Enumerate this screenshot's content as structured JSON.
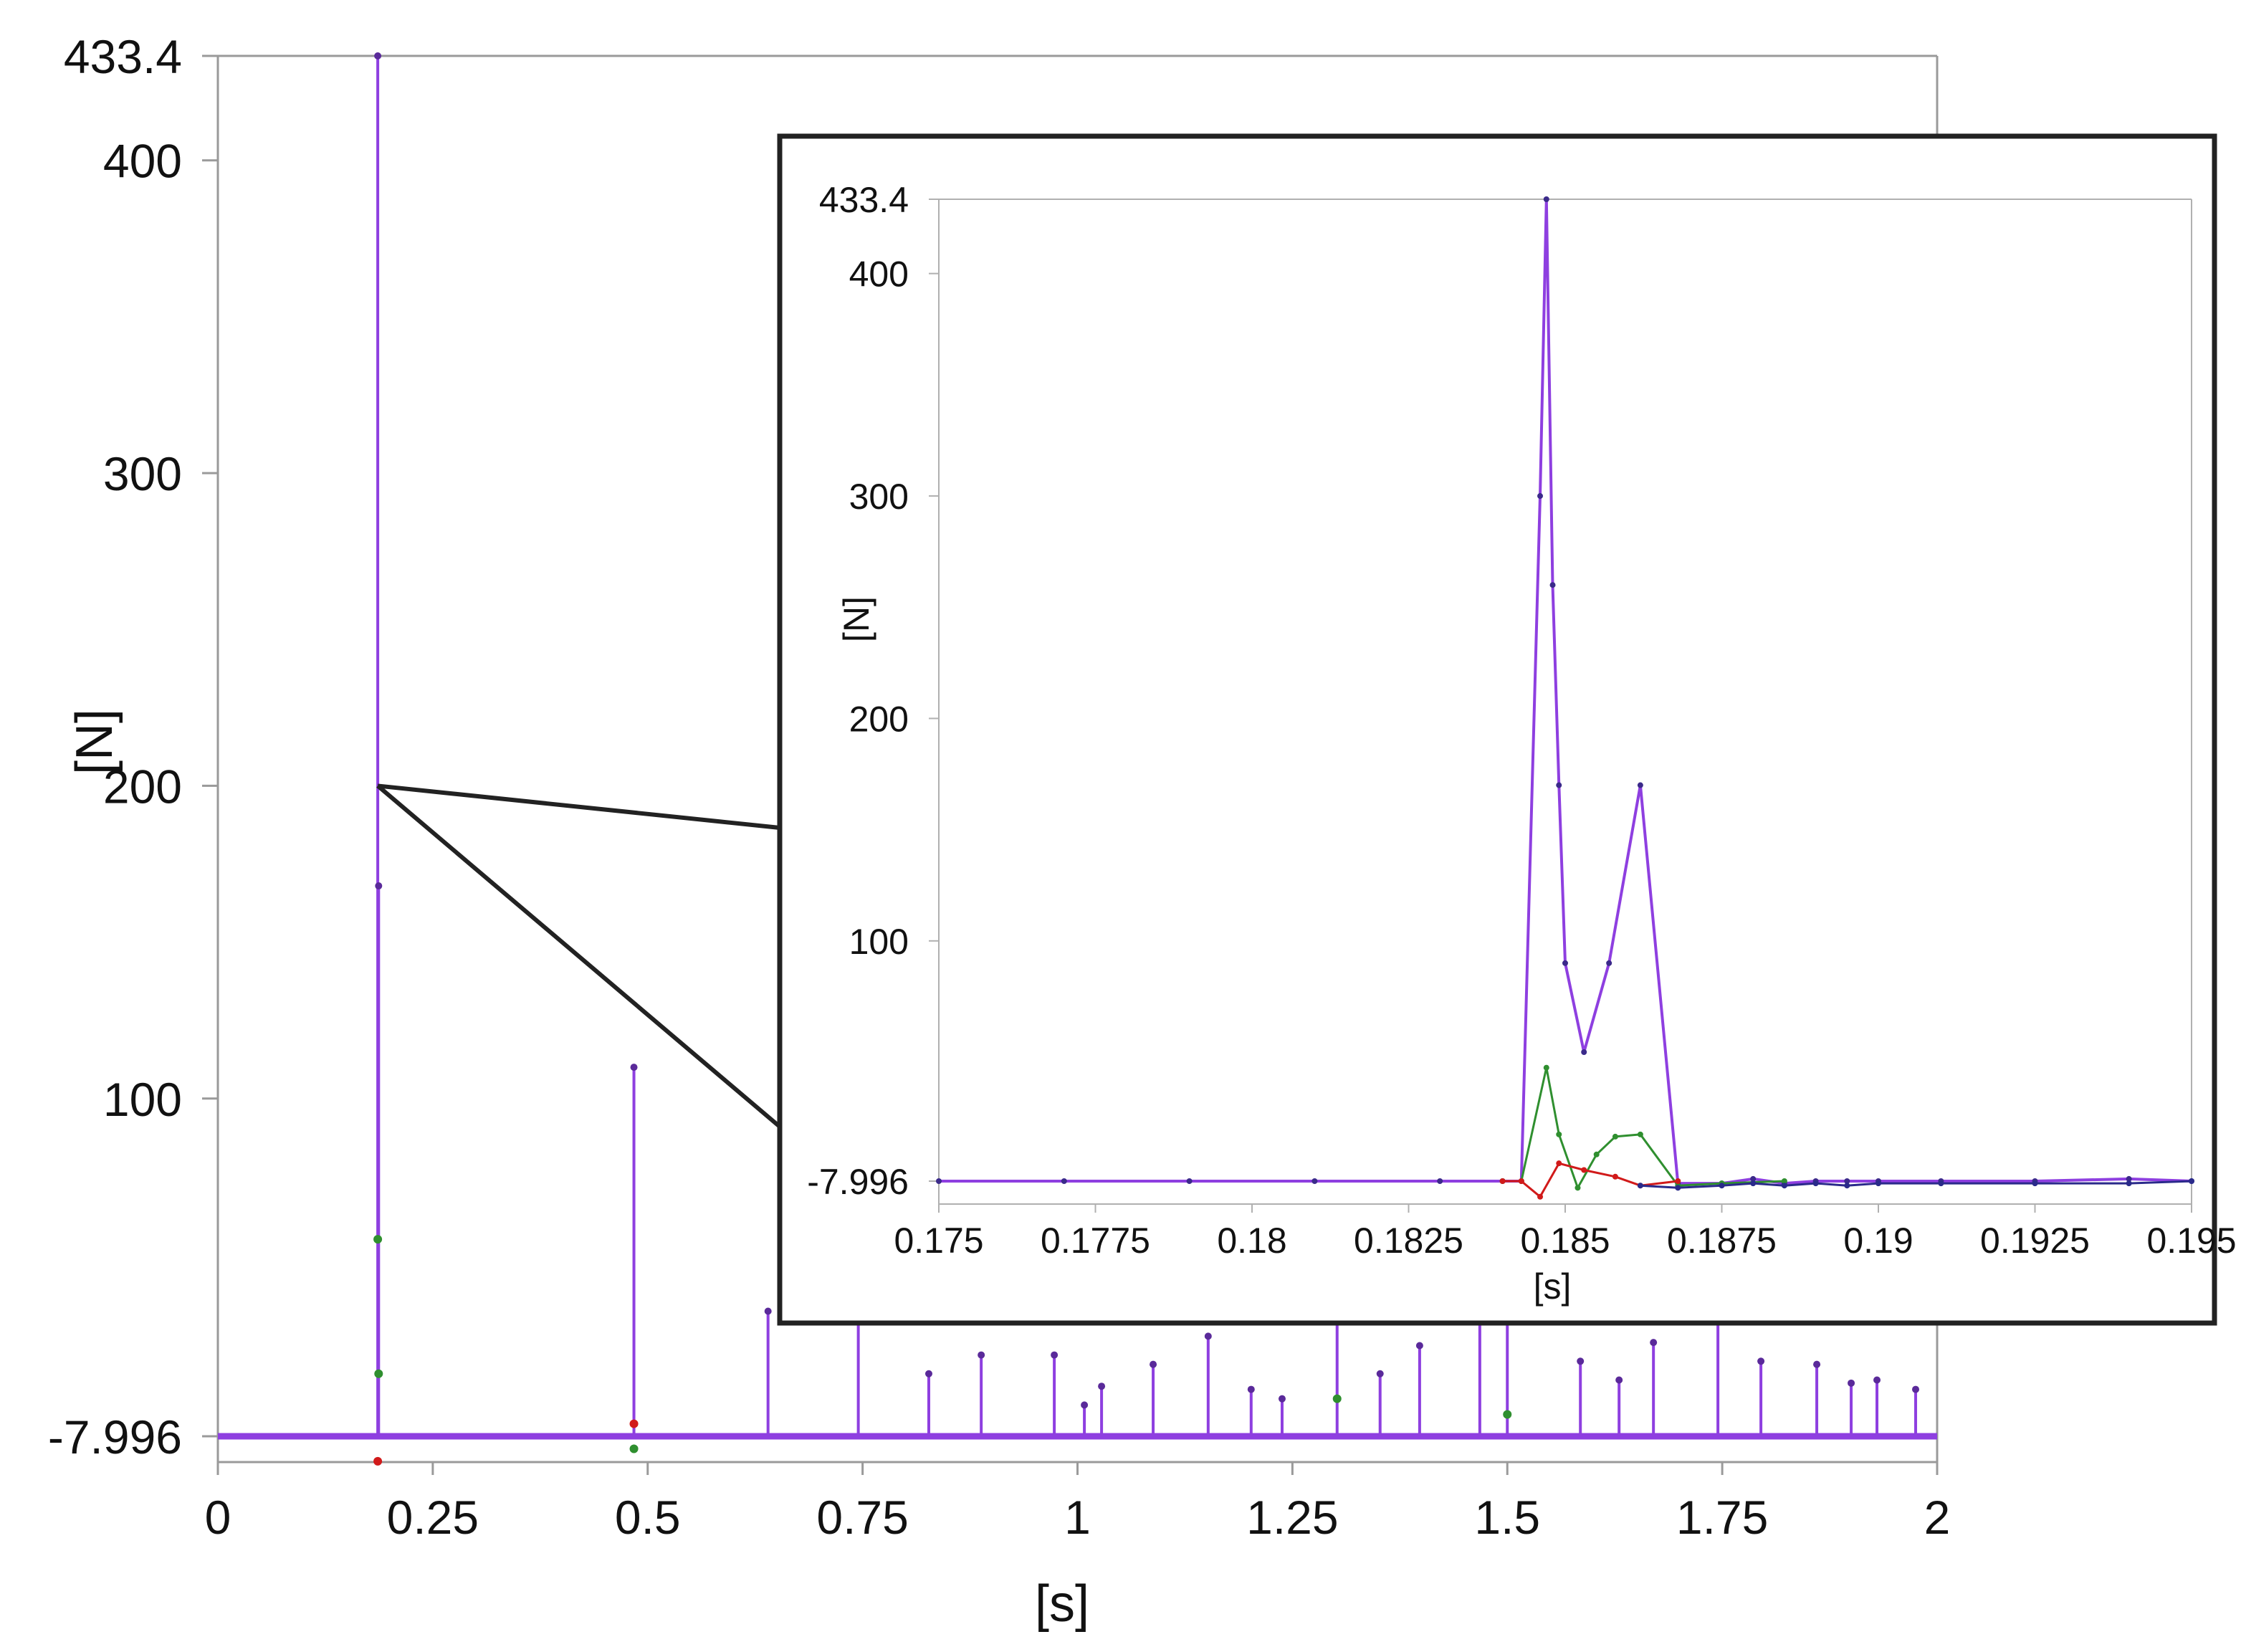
{
  "chart_data": [
    {
      "type": "line",
      "panel": "main",
      "xlabel": "[s]",
      "ylabel": "[N]",
      "xlim": [
        0,
        2
      ],
      "ylim": [
        -7.996,
        433.4
      ],
      "x_ticks": [
        0,
        0.25,
        0.5,
        0.75,
        1,
        1.25,
        1.5,
        1.75,
        2
      ],
      "x_tick_labels": [
        "0",
        "0.25",
        "0.5",
        "0.75",
        "1",
        "1.25",
        "1.5",
        "1.75",
        "2"
      ],
      "y_ticks": [
        -7.996,
        100,
        200,
        300,
        400,
        433.4
      ],
      "y_tick_labels": [
        "-7.996",
        "100",
        "200",
        "300",
        "400",
        "433.4"
      ],
      "grid": false,
      "legend": "none",
      "series": [
        {
          "color": "#8e3fe0",
          "baseline": -7.996,
          "spikes": [
            {
              "x": 0.186,
              "y": 433.4
            },
            {
              "x": 0.187,
              "y": 168
            },
            {
              "x": 0.484,
              "y": 110
            },
            {
              "x": 0.64,
              "y": 32
            },
            {
              "x": 0.745,
              "y": 35
            },
            {
              "x": 0.827,
              "y": 12
            },
            {
              "x": 0.888,
              "y": 18
            },
            {
              "x": 0.973,
              "y": 18
            },
            {
              "x": 1.008,
              "y": 2
            },
            {
              "x": 1.028,
              "y": 8
            },
            {
              "x": 1.088,
              "y": 15
            },
            {
              "x": 1.152,
              "y": 24
            },
            {
              "x": 1.202,
              "y": 7
            },
            {
              "x": 1.238,
              "y": 4
            },
            {
              "x": 1.302,
              "y": 40
            },
            {
              "x": 1.352,
              "y": 12
            },
            {
              "x": 1.398,
              "y": 21
            },
            {
              "x": 1.468,
              "y": 38
            },
            {
              "x": 1.5,
              "y": 35
            },
            {
              "x": 1.585,
              "y": 16
            },
            {
              "x": 1.63,
              "y": 10
            },
            {
              "x": 1.67,
              "y": 22
            },
            {
              "x": 1.745,
              "y": 40
            },
            {
              "x": 1.795,
              "y": 16
            },
            {
              "x": 1.86,
              "y": 15
            },
            {
              "x": 1.9,
              "y": 9
            },
            {
              "x": 1.93,
              "y": 10
            },
            {
              "x": 1.975,
              "y": 7
            }
          ]
        },
        {
          "color": "#2f8f2f",
          "points": [
            [
              0.186,
              55
            ],
            [
              0.187,
              12
            ],
            [
              0.484,
              -12
            ],
            [
              1.302,
              4
            ],
            [
              1.5,
              -1
            ]
          ]
        },
        {
          "color": "#d11a1a",
          "points": [
            [
              0.186,
              -16
            ],
            [
              0.484,
              -4
            ]
          ]
        }
      ]
    },
    {
      "type": "line",
      "panel": "inset",
      "xlabel": "[s]",
      "ylabel": "[N]",
      "xlim": [
        0.175,
        0.195
      ],
      "ylim": [
        -7.996,
        433.4
      ],
      "x_ticks": [
        0.175,
        0.1775,
        0.18,
        0.1825,
        0.185,
        0.1875,
        0.19,
        0.1925,
        0.195
      ],
      "x_tick_labels": [
        "0.175",
        "0.1775",
        "0.18",
        "0.1825",
        "0.185",
        "0.1875",
        "0.19",
        "0.1925",
        "0.195"
      ],
      "y_ticks": [
        -7.996,
        100,
        200,
        300,
        400,
        433.4
      ],
      "y_tick_labels": [
        "-7.996",
        "100",
        "200",
        "300",
        "400",
        "433.4"
      ],
      "grid": false,
      "legend": "none",
      "series": [
        {
          "color": "#8e3fe0",
          "x": [
            0.175,
            0.177,
            0.179,
            0.181,
            0.183,
            0.184,
            0.1843,
            0.1846,
            0.1847,
            0.1848,
            0.1849,
            0.185,
            0.1853,
            0.1857,
            0.1862,
            0.1868,
            0.1875,
            0.188,
            0.1885,
            0.189,
            0.1895,
            0.19,
            0.191,
            0.1925,
            0.194,
            0.195
          ],
          "y": [
            -7.996,
            -7.996,
            -7.996,
            -7.996,
            -7.996,
            -7.996,
            -7.996,
            300,
            433.4,
            260,
            170,
            90,
            50,
            90,
            170,
            -9,
            -9,
            -7,
            -9,
            -8,
            -8,
            -8,
            -8,
            -8,
            -7,
            -8
          ]
        },
        {
          "color": "#2f8f2f",
          "x": [
            0.184,
            0.1843,
            0.1847,
            0.1849,
            0.1852,
            0.1855,
            0.1858,
            0.1862,
            0.1868,
            0.1875,
            0.1885
          ],
          "y": [
            -7.996,
            -7.996,
            43,
            13,
            -11,
            4,
            12,
            13,
            -10,
            -9,
            -8
          ]
        },
        {
          "color": "#d11a1a",
          "x": [
            0.184,
            0.1843,
            0.1846,
            0.1849,
            0.1853,
            0.1858,
            0.1862,
            0.1868
          ],
          "y": [
            -7.996,
            -7.996,
            -15,
            0,
            -3,
            -6,
            -10,
            -8
          ]
        },
        {
          "color": "#2a2a8a",
          "x": [
            0.1862,
            0.1868,
            0.1875,
            0.188,
            0.1885,
            0.189,
            0.1895,
            0.19,
            0.191,
            0.1925,
            0.194,
            0.195
          ],
          "y": [
            -10,
            -11,
            -10,
            -9,
            -10,
            -9,
            -10,
            -9,
            -9,
            -9,
            -9,
            -8
          ]
        }
      ]
    }
  ]
}
